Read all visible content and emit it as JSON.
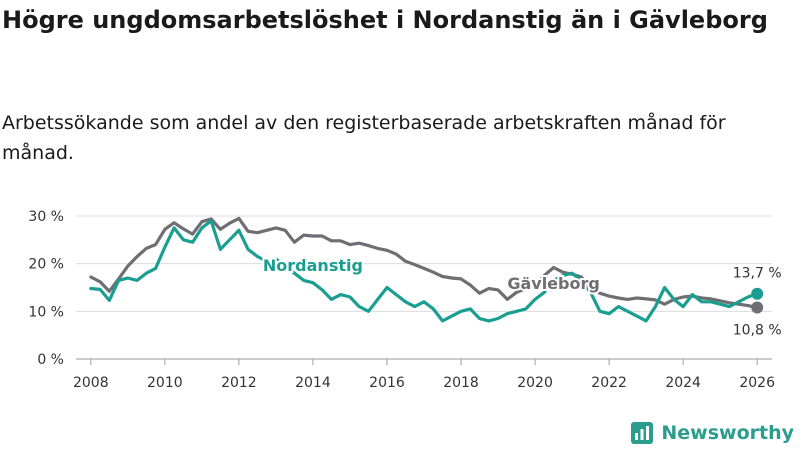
{
  "title": "Högre ungdomsarbetslöshet i Nordanstig än i Gävleborg",
  "subtitle": "Arbetssökande som andel av den registerbaserade arbetskraften månad för månad.",
  "brand": {
    "name": "Newsworthy",
    "icon": "newsworthy-logo-icon",
    "color": "#2a9d8f"
  },
  "chart_data": {
    "type": "line",
    "title": "Högre ungdomsarbetslöshet i Nordanstig än i Gävleborg",
    "xlabel": "",
    "ylabel": "",
    "xlim": [
      2007.6,
      2026.4
    ],
    "ylim": [
      0,
      30
    ],
    "x_ticks": [
      2008,
      2010,
      2012,
      2014,
      2016,
      2018,
      2020,
      2022,
      2024,
      2026
    ],
    "x_tick_labels": [
      "2008",
      "2010",
      "2012",
      "2014",
      "2016",
      "2018",
      "2020",
      "2022",
      "2024",
      "2026"
    ],
    "y_ticks": [
      0,
      10,
      20,
      30
    ],
    "y_tick_labels": [
      "0 %",
      "10 %",
      "20 %",
      "30 %"
    ],
    "grid": "horizontal",
    "series": [
      {
        "name": "Gävleborg",
        "color": "#6e6e73",
        "end_label": "10,8 %",
        "points": [
          [
            2008.0,
            17.2
          ],
          [
            2008.25,
            16.2
          ],
          [
            2008.5,
            14.2
          ],
          [
            2008.75,
            16.8
          ],
          [
            2009.0,
            19.5
          ],
          [
            2009.25,
            21.5
          ],
          [
            2009.5,
            23.2
          ],
          [
            2009.75,
            24.0
          ],
          [
            2010.0,
            27.2
          ],
          [
            2010.25,
            28.6
          ],
          [
            2010.5,
            27.3
          ],
          [
            2010.75,
            26.2
          ],
          [
            2011.0,
            28.8
          ],
          [
            2011.25,
            29.4
          ],
          [
            2011.5,
            27.2
          ],
          [
            2011.75,
            28.5
          ],
          [
            2012.0,
            29.5
          ],
          [
            2012.25,
            26.8
          ],
          [
            2012.5,
            26.5
          ],
          [
            2012.75,
            27.0
          ],
          [
            2013.0,
            27.5
          ],
          [
            2013.25,
            27.0
          ],
          [
            2013.5,
            24.5
          ],
          [
            2013.75,
            26.0
          ],
          [
            2014.0,
            25.8
          ],
          [
            2014.25,
            25.8
          ],
          [
            2014.5,
            24.8
          ],
          [
            2014.75,
            24.8
          ],
          [
            2015.0,
            24.0
          ],
          [
            2015.25,
            24.3
          ],
          [
            2015.5,
            23.8
          ],
          [
            2015.75,
            23.2
          ],
          [
            2016.0,
            22.8
          ],
          [
            2016.25,
            22.0
          ],
          [
            2016.5,
            20.5
          ],
          [
            2016.75,
            19.8
          ],
          [
            2017.0,
            19.0
          ],
          [
            2017.25,
            18.2
          ],
          [
            2017.5,
            17.3
          ],
          [
            2017.75,
            17.0
          ],
          [
            2018.0,
            16.8
          ],
          [
            2018.25,
            15.5
          ],
          [
            2018.5,
            13.8
          ],
          [
            2018.75,
            14.8
          ],
          [
            2019.0,
            14.5
          ],
          [
            2019.25,
            12.5
          ],
          [
            2019.5,
            14.0
          ],
          [
            2019.75,
            14.8
          ],
          [
            2020.0,
            15.5
          ],
          [
            2020.25,
            17.5
          ],
          [
            2020.5,
            19.2
          ],
          [
            2020.75,
            18.2
          ],
          [
            2021.0,
            17.8
          ],
          [
            2021.25,
            17.2
          ],
          [
            2021.5,
            15.0
          ],
          [
            2021.75,
            13.8
          ],
          [
            2022.0,
            13.2
          ],
          [
            2022.25,
            12.8
          ],
          [
            2022.5,
            12.5
          ],
          [
            2022.75,
            12.8
          ],
          [
            2023.0,
            12.6
          ],
          [
            2023.25,
            12.4
          ],
          [
            2023.5,
            11.5
          ],
          [
            2023.75,
            12.5
          ],
          [
            2024.0,
            13.0
          ],
          [
            2024.25,
            13.2
          ],
          [
            2024.5,
            12.8
          ],
          [
            2024.75,
            12.6
          ],
          [
            2025.0,
            12.2
          ],
          [
            2025.25,
            11.8
          ],
          [
            2025.5,
            11.5
          ],
          [
            2025.75,
            11.2
          ],
          [
            2026.0,
            10.8
          ]
        ]
      },
      {
        "name": "Nordanstig",
        "color": "#1a9e91",
        "end_label": "13,7 %",
        "points": [
          [
            2008.0,
            14.8
          ],
          [
            2008.25,
            14.6
          ],
          [
            2008.5,
            12.3
          ],
          [
            2008.75,
            16.5
          ],
          [
            2009.0,
            17.0
          ],
          [
            2009.25,
            16.5
          ],
          [
            2009.5,
            18.0
          ],
          [
            2009.75,
            19.0
          ],
          [
            2010.0,
            23.5
          ],
          [
            2010.25,
            27.5
          ],
          [
            2010.5,
            25.0
          ],
          [
            2010.75,
            24.5
          ],
          [
            2011.0,
            27.5
          ],
          [
            2011.25,
            29.0
          ],
          [
            2011.5,
            23.0
          ],
          [
            2011.75,
            25.0
          ],
          [
            2012.0,
            27.0
          ],
          [
            2012.25,
            23.0
          ],
          [
            2012.5,
            21.5
          ],
          [
            2012.75,
            20.5
          ],
          [
            2013.0,
            21.0
          ],
          [
            2013.25,
            19.5
          ],
          [
            2013.5,
            18.0
          ],
          [
            2013.75,
            16.5
          ],
          [
            2014.0,
            16.0
          ],
          [
            2014.25,
            14.5
          ],
          [
            2014.5,
            12.5
          ],
          [
            2014.75,
            13.5
          ],
          [
            2015.0,
            13.0
          ],
          [
            2015.25,
            11.0
          ],
          [
            2015.5,
            10.0
          ],
          [
            2015.75,
            12.5
          ],
          [
            2016.0,
            15.0
          ],
          [
            2016.25,
            13.5
          ],
          [
            2016.5,
            12.0
          ],
          [
            2016.75,
            11.0
          ],
          [
            2017.0,
            12.0
          ],
          [
            2017.25,
            10.5
          ],
          [
            2017.5,
            8.0
          ],
          [
            2017.75,
            9.0
          ],
          [
            2018.0,
            10.0
          ],
          [
            2018.25,
            10.5
          ],
          [
            2018.5,
            8.5
          ],
          [
            2018.75,
            8.0
          ],
          [
            2019.0,
            8.5
          ],
          [
            2019.25,
            9.5
          ],
          [
            2019.5,
            10.0
          ],
          [
            2019.75,
            10.5
          ],
          [
            2020.0,
            12.5
          ],
          [
            2020.25,
            14.0
          ],
          [
            2020.5,
            16.5
          ],
          [
            2020.75,
            17.5
          ],
          [
            2021.0,
            18.0
          ],
          [
            2021.25,
            16.5
          ],
          [
            2021.5,
            14.0
          ],
          [
            2021.75,
            10.0
          ],
          [
            2022.0,
            9.5
          ],
          [
            2022.25,
            11.0
          ],
          [
            2022.5,
            10.0
          ],
          [
            2022.75,
            9.0
          ],
          [
            2023.0,
            8.0
          ],
          [
            2023.25,
            11.0
          ],
          [
            2023.5,
            15.0
          ],
          [
            2023.75,
            12.5
          ],
          [
            2024.0,
            11.0
          ],
          [
            2024.25,
            13.5
          ],
          [
            2024.5,
            12.0
          ],
          [
            2024.75,
            12.0
          ],
          [
            2025.0,
            11.5
          ],
          [
            2025.25,
            11.0
          ],
          [
            2025.5,
            12.0
          ],
          [
            2025.75,
            13.0
          ],
          [
            2026.0,
            13.7
          ]
        ]
      }
    ]
  }
}
